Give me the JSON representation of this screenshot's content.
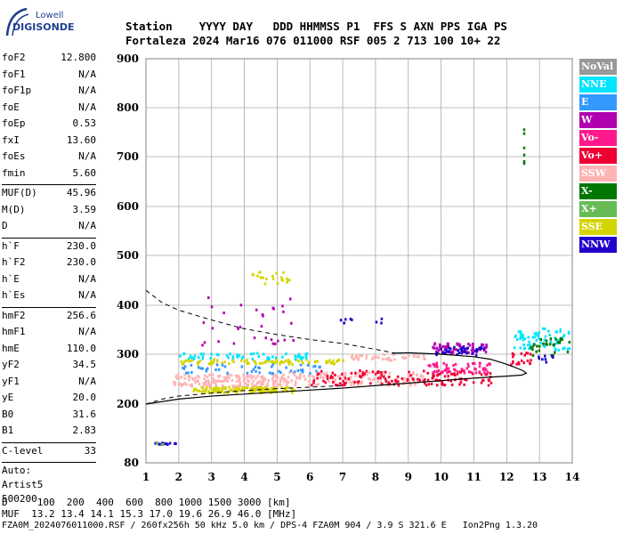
{
  "logo": {
    "line1": "Lowell",
    "line2": "DIGISONDE"
  },
  "header": {
    "row1": "Station    YYYY DAY   DDD HHMMSS P1  FFS S AXN PPS IGA PS",
    "row2": "Fortaleza 2024 Mar16 076 011000 RSF 005 2 713 100 10+ 22"
  },
  "params": [
    {
      "label": "foF2",
      "value": "12.800"
    },
    {
      "label": "foF1",
      "value": "N/A"
    },
    {
      "label": "foF1p",
      "value": "N/A"
    },
    {
      "label": "foE",
      "value": "N/A"
    },
    {
      "label": "foEp",
      "value": "0.53"
    },
    {
      "label": "fxI",
      "value": "13.60"
    },
    {
      "label": "foEs",
      "value": "N/A"
    },
    {
      "label": "fmin",
      "value": "5.60"
    },
    {
      "sep": true
    },
    {
      "label": "MUF(D)",
      "value": "45.96"
    },
    {
      "label": "M(D)",
      "value": "3.59"
    },
    {
      "label": "D",
      "value": "N/A"
    },
    {
      "sep": true
    },
    {
      "label": "h`F",
      "value": "230.0"
    },
    {
      "label": "h`F2",
      "value": "230.0"
    },
    {
      "label": "h`E",
      "value": "N/A"
    },
    {
      "label": "h`Es",
      "value": "N/A"
    },
    {
      "sep": true
    },
    {
      "label": "hmF2",
      "value": "256.6"
    },
    {
      "label": "hmF1",
      "value": "N/A"
    },
    {
      "label": "hmE",
      "value": "110.0"
    },
    {
      "label": "yF2",
      "value": "34.5"
    },
    {
      "label": "yF1",
      "value": "N/A"
    },
    {
      "label": "yE",
      "value": "20.0"
    },
    {
      "label": "B0",
      "value": "31.6"
    },
    {
      "label": "B1",
      "value": "2.83"
    },
    {
      "sep": true
    },
    {
      "label": "C-level",
      "value": "33"
    },
    {
      "sep": true
    },
    {
      "plain": "Auto:"
    },
    {
      "plain": "Artist5"
    },
    {
      "plain": "500200"
    }
  ],
  "bottom": {
    "line1": "D     100  200  400  600  800 1000 1500 3000 [km]",
    "line2": "MUF  13.2 13.4 14.1 15.3 17.0 19.6 26.9 46.0 [MHz]",
    "line3": "FZA0M_2024076011000.RSF / 260fx256h 50 kHz 5.0 km / DPS-4 FZA0M 904 / 3.9 S 321.6 E   Ion2Png 1.3.20"
  },
  "legend": [
    {
      "label": "NoVal",
      "color": "#999999"
    },
    {
      "label": "NNE",
      "color": "#00e5ff"
    },
    {
      "label": "E",
      "color": "#3399ff"
    },
    {
      "label": "W",
      "color": "#b000b0"
    },
    {
      "label": "Vo-",
      "color": "#ff1a8c"
    },
    {
      "label": "Vo+",
      "color": "#ee0033"
    },
    {
      "label": "SSW",
      "color": "#ffb3b3"
    },
    {
      "label": "X-",
      "color": "#007700"
    },
    {
      "label": "X+",
      "color": "#66bb55"
    },
    {
      "label": "SSE",
      "color": "#d4d400"
    },
    {
      "label": "NNW",
      "color": "#2200cc"
    }
  ],
  "chart_data": {
    "type": "scatter",
    "xlim": [
      1,
      14
    ],
    "ylim": [
      80,
      900
    ],
    "xticks": [
      1,
      2,
      3,
      4,
      5,
      6,
      7,
      8,
      9,
      10,
      11,
      12,
      13,
      14
    ],
    "yticks": [
      80,
      200,
      300,
      400,
      500,
      600,
      700,
      800,
      900
    ],
    "grid": true,
    "legend_position": "right",
    "profile_curve": [
      [
        1.0,
        200
      ],
      [
        2.0,
        210
      ],
      [
        3.0,
        216
      ],
      [
        4.0,
        220
      ],
      [
        5.0,
        224
      ],
      [
        6.0,
        228
      ],
      [
        7.0,
        232
      ],
      [
        8.0,
        237
      ],
      [
        9.0,
        242
      ],
      [
        10.0,
        247
      ],
      [
        11.0,
        252
      ],
      [
        12.0,
        256
      ],
      [
        12.45,
        258
      ],
      [
        12.6,
        262
      ],
      [
        12.5,
        267
      ],
      [
        12.2,
        275
      ],
      [
        11.9,
        282
      ],
      [
        11.5,
        290
      ],
      [
        11.0,
        295
      ],
      [
        10.0,
        300
      ],
      [
        9.0,
        303
      ],
      [
        8.5,
        302
      ]
    ],
    "dashed_curves": [
      {
        "points": [
          [
            1,
            430
          ],
          [
            1.5,
            405
          ],
          [
            2,
            390
          ],
          [
            3,
            370
          ],
          [
            4,
            352
          ],
          [
            5,
            340
          ],
          [
            6,
            330
          ],
          [
            7,
            322
          ],
          [
            8,
            310
          ],
          [
            8.6,
            302
          ]
        ]
      },
      {
        "points": [
          [
            1,
            200
          ],
          [
            1.5,
            210
          ],
          [
            2,
            216
          ],
          [
            3,
            222
          ],
          [
            4,
            227
          ],
          [
            5,
            231
          ],
          [
            6,
            234
          ],
          [
            7,
            237
          ]
        ]
      }
    ],
    "clusters": [
      {
        "name": "SSE",
        "x": [
          2.4,
          5.5
        ],
        "y": [
          225,
          237
        ],
        "n": 140
      },
      {
        "name": "SSW",
        "x": [
          1.8,
          5.2
        ],
        "y": [
          238,
          262
        ],
        "n": 160
      },
      {
        "name": "SSW",
        "x": [
          5.2,
          9.5
        ],
        "y": [
          240,
          268
        ],
        "n": 120
      },
      {
        "name": "SSE",
        "x": [
          2.0,
          7.0
        ],
        "y": [
          282,
          292
        ],
        "n": 90
      },
      {
        "name": "NNE",
        "x": [
          2.0,
          6.0
        ],
        "y": [
          292,
          305
        ],
        "n": 60
      },
      {
        "name": "E",
        "x": [
          2.0,
          6.5
        ],
        "y": [
          264,
          282
        ],
        "n": 50
      },
      {
        "name": "Vo+",
        "x": [
          6.0,
          11.5
        ],
        "y": [
          240,
          270
        ],
        "n": 140
      },
      {
        "name": "Vo-",
        "x": [
          9.5,
          11.5
        ],
        "y": [
          265,
          285
        ],
        "n": 60
      },
      {
        "name": "W",
        "x": [
          9.7,
          11.4
        ],
        "y": [
          305,
          325
        ],
        "n": 70
      },
      {
        "name": "NNW",
        "x": [
          9.8,
          11.3
        ],
        "y": [
          300,
          318
        ],
        "n": 40
      },
      {
        "name": "SSW",
        "x": [
          7.2,
          9.5
        ],
        "y": [
          290,
          302
        ],
        "n": 40
      },
      {
        "name": "NNE",
        "x": [
          12.2,
          13.9
        ],
        "y": [
          310,
          355
        ],
        "n": 70
      },
      {
        "name": "X-",
        "x": [
          12.7,
          13.9
        ],
        "y": [
          300,
          335
        ],
        "n": 30
      },
      {
        "name": "Vo+",
        "x": [
          12.1,
          12.8
        ],
        "y": [
          280,
          305
        ],
        "n": 20
      },
      {
        "name": "NNW",
        "x": [
          12.9,
          13.4
        ],
        "y": [
          280,
          300
        ],
        "n": 8
      },
      {
        "name": "SSE",
        "x": [
          4.2,
          5.4
        ],
        "y": [
          445,
          470
        ],
        "n": 22
      },
      {
        "name": "W",
        "x": [
          2.5,
          5.5
        ],
        "y": [
          320,
          420
        ],
        "n": 30
      },
      {
        "name": "NNW",
        "x": [
          1.2,
          1.9
        ],
        "y": [
          120,
          123
        ],
        "n": 12
      },
      {
        "name": "X+",
        "x": [
          1.2,
          1.5
        ],
        "y": [
          120,
          125
        ],
        "n": 4
      },
      {
        "name": "NNW",
        "x": [
          6.9,
          8.2
        ],
        "y": [
          365,
          375
        ],
        "n": 8
      },
      {
        "name": "X-",
        "x": [
          12.5,
          12.5
        ],
        "y": [
          680,
          760
        ],
        "n": 6
      }
    ]
  }
}
